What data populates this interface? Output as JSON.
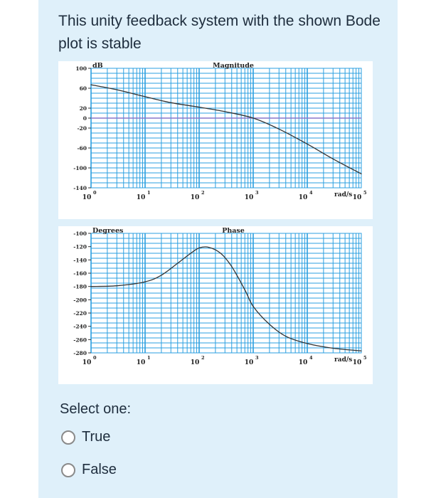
{
  "question": {
    "text": "This unity feedback system with the shown Bode plot is stable"
  },
  "chart_data": [
    {
      "type": "line",
      "title": "Magnitude",
      "ylabel": "dB",
      "xunit_label": "rad/s",
      "x_scale": "log",
      "xlim": [
        1,
        100000
      ],
      "ylim": [
        -140,
        100
      ],
      "yticks": [
        100,
        60,
        20,
        0,
        -20,
        -60,
        -100,
        -140
      ],
      "xticks": [
        {
          "value": 1,
          "base": "10",
          "exp": "0"
        },
        {
          "value": 10,
          "base": "10",
          "exp": "1"
        },
        {
          "value": 100,
          "base": "10",
          "exp": "2"
        },
        {
          "value": 1000,
          "base": "10",
          "exp": "3"
        },
        {
          "value": 10000,
          "base": "10",
          "exp": "4"
        },
        {
          "value": 100000,
          "base": "10",
          "exp": "5"
        }
      ],
      "reference_line": 0,
      "grid": true,
      "colors": {
        "grid": "#2b9fe0",
        "line": "#333333",
        "reference": "#8877cc"
      },
      "x": [
        1,
        3,
        10,
        30,
        100,
        300,
        1000,
        3000,
        10000,
        30000,
        100000
      ],
      "y": [
        67,
        57,
        43,
        31,
        22,
        13,
        0,
        -22,
        -52,
        -82,
        -112
      ]
    },
    {
      "type": "line",
      "title": "Phase",
      "ylabel": "Degrees",
      "xunit_label": "rad/s",
      "x_scale": "log",
      "xlim": [
        1,
        100000
      ],
      "ylim": [
        -280,
        -100
      ],
      "yticks": [
        -100,
        -120,
        -140,
        -160,
        -180,
        -200,
        -220,
        -240,
        -260,
        -280
      ],
      "xticks": [
        {
          "value": 1,
          "base": "10",
          "exp": "0"
        },
        {
          "value": 10,
          "base": "10",
          "exp": "1"
        },
        {
          "value": 100,
          "base": "10",
          "exp": "2"
        },
        {
          "value": 1000,
          "base": "10",
          "exp": "3"
        },
        {
          "value": 10000,
          "base": "10",
          "exp": "4"
        },
        {
          "value": 100000,
          "base": "10",
          "exp": "5"
        }
      ],
      "grid": true,
      "colors": {
        "grid": "#2b9fe0",
        "line": "#333333"
      },
      "x": [
        1,
        3,
        10,
        20,
        40,
        70,
        100,
        150,
        250,
        400,
        700,
        1000,
        2000,
        4000,
        10000,
        30000,
        100000
      ],
      "y": [
        -180,
        -179,
        -173,
        -163,
        -145,
        -130,
        -122,
        -121,
        -130,
        -150,
        -185,
        -210,
        -237,
        -255,
        -266,
        -273,
        -277
      ]
    }
  ],
  "answers": {
    "prompt": "Select one:",
    "options": [
      {
        "label": "True"
      },
      {
        "label": "False"
      }
    ]
  }
}
